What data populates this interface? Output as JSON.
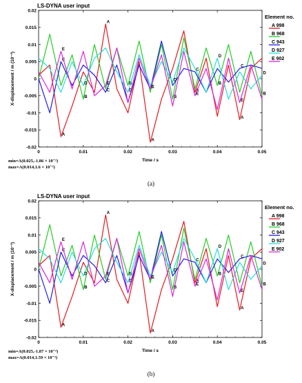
{
  "figure": {
    "panels": [
      {
        "caption": "(a)",
        "chart_data": {
          "type": "line",
          "title": "LS-DYNA user input",
          "xlabel": "Time / s",
          "ylabel": "X-displacement / m (10⁻³)",
          "xlim": [
            0,
            0.05
          ],
          "ylim": [
            -0.02,
            0.02
          ],
          "xticks": [
            "0",
            "0.01",
            "0.02",
            "0.03",
            "0.04",
            "0.05"
          ],
          "yticks": [
            "0.02",
            "0.015",
            "0.01",
            "0.005",
            "0",
            "-0.005",
            "-0.01",
            "-0.015",
            "-0.02"
          ],
          "legend_title": "Element no.",
          "legend_position": "right",
          "min_text": "min=A(0.025,-1.86 × 10⁻²)",
          "max_text": "max=A(0.014,1.6 × 10⁻²)",
          "x": [
            0,
            0.0025,
            0.005,
            0.0075,
            0.01,
            0.0125,
            0.015,
            0.0175,
            0.02,
            0.0225,
            0.025,
            0.0275,
            0.03,
            0.0325,
            0.035,
            0.0375,
            0.04,
            0.0425,
            0.045,
            0.0475,
            0.05
          ],
          "series": [
            {
              "name": "A 998",
              "color": "#e8161b",
              "values": [
                0.001,
                0.004,
                -0.017,
                -0.008,
                0.002,
                -0.004,
                0.016,
                -0.003,
                -0.01,
                0.005,
                -0.0186,
                -0.006,
                0.003,
                0.014,
                -0.004,
                0.006,
                -0.011,
                0.004,
                -0.012,
                0.003,
                0.006
              ]
            },
            {
              "name": "B 968",
              "color": "#22cc22",
              "values": [
                0.0,
                0.013,
                -0.002,
                0.007,
                -0.006,
                0.01,
                -0.003,
                0.009,
                -0.002,
                0.011,
                -0.004,
                0.01,
                -0.006,
                0.012,
                -0.003,
                0.009,
                -0.002,
                0.01,
                -0.004,
                0.008,
                -0.005
              ]
            },
            {
              "name": "C 943",
              "color": "#1a1aee",
              "values": [
                0.0,
                -0.01,
                0.005,
                -0.002,
                0.004,
                0.001,
                -0.004,
                0.004,
                -0.007,
                0.004,
                -0.003,
                0.011,
                -0.002,
                0.003,
                0.002,
                -0.004,
                0.003,
                -0.001,
                0.003,
                0.004,
                0.003
              ]
            },
            {
              "name": "D 927",
              "color": "#22dddd",
              "values": [
                0.006,
                0.003,
                -0.004,
                0.005,
                -0.002,
                0.006,
                0.009,
                0.002,
                -0.004,
                0.007,
                -0.002,
                0.005,
                -0.001,
                0.009,
                0.003,
                -0.004,
                0.006,
                -0.006,
                0.002,
                -0.003,
                0.001
              ]
            },
            {
              "name": "E 902",
              "color": "#dd22dd",
              "values": [
                0.002,
                -0.004,
                0.008,
                -0.003,
                0.008,
                -0.005,
                -0.002,
                0.009,
                -0.007,
                0.006,
                -0.003,
                0.007,
                -0.008,
                0.008,
                -0.005,
                0.003,
                -0.009,
                0.006,
                -0.007,
                0.004,
                -0.006
              ]
            }
          ]
        }
      },
      {
        "caption": "(b)",
        "chart_data": {
          "type": "line",
          "title": "LS-DYNA user input",
          "xlabel": "Time / s",
          "ylabel": "X-displacement / m (10⁻³)",
          "xlim": [
            0,
            0.05
          ],
          "ylim": [
            -0.02,
            0.02
          ],
          "xticks": [
            "0",
            "0.01",
            "0.02",
            "0.03",
            "0.04",
            "0.05"
          ],
          "yticks": [
            "0.02",
            "0.015",
            "0.01",
            "0.005",
            "0",
            "-0.005",
            "-0.01",
            "-0.015",
            "-0.02"
          ],
          "legend_title": "Element no.",
          "legend_position": "right",
          "min_text": "min=A(0.025,-1.87 × 10⁻²)",
          "max_text": "max=A(0.014,1.59 × 10⁻²)",
          "x": [
            0,
            0.0025,
            0.005,
            0.0075,
            0.01,
            0.0125,
            0.015,
            0.0175,
            0.02,
            0.0225,
            0.025,
            0.0275,
            0.03,
            0.0325,
            0.035,
            0.0375,
            0.04,
            0.0425,
            0.045,
            0.0475,
            0.05
          ],
          "series": [
            {
              "name": "A 998",
              "color": "#e8161b",
              "values": [
                0.001,
                0.004,
                -0.017,
                -0.008,
                0.002,
                -0.004,
                0.0159,
                -0.003,
                -0.01,
                0.005,
                -0.0187,
                -0.006,
                0.003,
                0.014,
                -0.004,
                0.006,
                -0.011,
                0.004,
                -0.012,
                0.003,
                0.006
              ]
            },
            {
              "name": "B 968",
              "color": "#22cc22",
              "values": [
                0.0,
                0.013,
                -0.002,
                0.007,
                -0.006,
                0.01,
                -0.003,
                0.009,
                -0.002,
                0.011,
                -0.004,
                0.01,
                -0.006,
                0.012,
                -0.003,
                0.009,
                -0.002,
                0.01,
                -0.004,
                0.008,
                -0.005
              ]
            },
            {
              "name": "C 943",
              "color": "#1a1aee",
              "values": [
                0.0,
                -0.01,
                0.005,
                -0.002,
                0.004,
                0.001,
                -0.004,
                0.004,
                -0.007,
                0.004,
                -0.003,
                0.011,
                -0.002,
                0.003,
                0.002,
                -0.004,
                0.003,
                -0.001,
                0.003,
                0.004,
                0.003
              ]
            },
            {
              "name": "D 927",
              "color": "#22dddd",
              "values": [
                0.006,
                0.003,
                -0.004,
                0.005,
                -0.002,
                0.006,
                0.009,
                0.002,
                -0.004,
                0.007,
                -0.002,
                0.005,
                -0.001,
                0.009,
                0.003,
                -0.004,
                0.006,
                -0.006,
                0.002,
                -0.003,
                0.001
              ]
            },
            {
              "name": "E 902",
              "color": "#dd22dd",
              "values": [
                0.002,
                -0.004,
                0.008,
                -0.003,
                0.008,
                -0.005,
                -0.002,
                0.009,
                -0.007,
                0.006,
                -0.003,
                0.007,
                -0.008,
                0.008,
                -0.005,
                0.003,
                -0.009,
                0.006,
                -0.007,
                0.004,
                -0.006
              ]
            }
          ]
        }
      }
    ]
  }
}
